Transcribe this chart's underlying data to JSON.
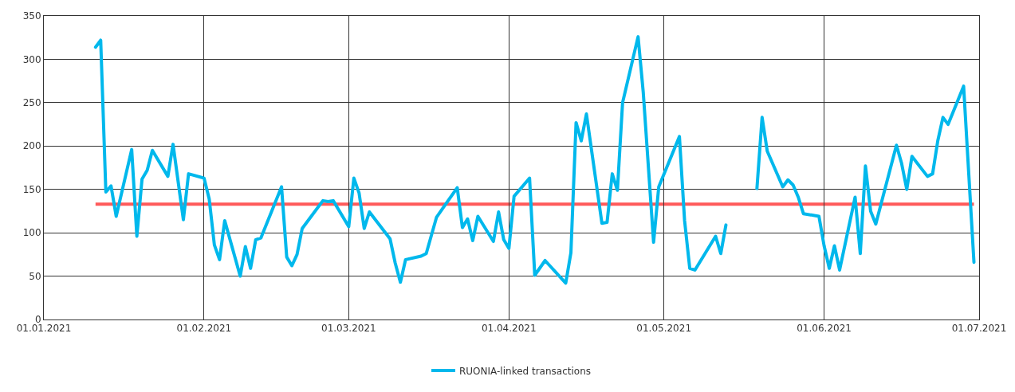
{
  "chart_data": {
    "type": "line",
    "x": [
      "2021-01-11",
      "2021-01-12",
      "2021-01-13",
      "2021-01-14",
      "2021-01-15",
      "2021-01-18",
      "2021-01-19",
      "2021-01-20",
      "2021-01-21",
      "2021-01-22",
      "2021-01-25",
      "2021-01-26",
      "2021-01-28",
      "2021-01-29",
      "2021-02-01",
      "2021-02-02",
      "2021-02-03",
      "2021-02-04",
      "2021-02-05",
      "2021-02-08",
      "2021-02-09",
      "2021-02-10",
      "2021-02-11",
      "2021-02-12",
      "2021-02-16",
      "2021-02-17",
      "2021-02-18",
      "2021-02-19",
      "2021-02-20",
      "2021-02-24",
      "2021-02-25",
      "2021-02-26",
      "2021-03-01",
      "2021-03-02",
      "2021-03-03",
      "2021-03-04",
      "2021-03-05",
      "2021-03-09",
      "2021-03-10",
      "2021-03-11",
      "2021-03-12",
      "2021-03-15",
      "2021-03-16",
      "2021-03-18",
      "2021-03-22",
      "2021-03-23",
      "2021-03-24",
      "2021-03-25",
      "2021-03-26",
      "2021-03-29",
      "2021-03-30",
      "2021-03-31",
      "2021-04-01",
      "2021-04-02",
      "2021-04-05",
      "2021-04-06",
      "2021-04-08",
      "2021-04-12",
      "2021-04-13",
      "2021-04-14",
      "2021-04-15",
      "2021-04-16",
      "2021-04-19",
      "2021-04-20",
      "2021-04-21",
      "2021-04-22",
      "2021-04-23",
      "2021-04-26",
      "2021-04-27",
      "2021-04-29",
      "2021-04-30",
      "2021-05-04",
      "2021-05-05",
      "2021-05-06",
      "2021-05-07",
      "2021-05-11",
      "2021-05-12",
      "2021-05-13",
      "2021-05-14",
      "2021-05-19",
      "2021-05-20",
      "2021-05-21",
      "2021-05-24",
      "2021-05-25",
      "2021-05-26",
      "2021-05-27",
      "2021-05-28",
      "2021-05-31",
      "2021-06-01",
      "2021-06-02",
      "2021-06-03",
      "2021-06-04",
      "2021-06-07",
      "2021-06-08",
      "2021-06-09",
      "2021-06-10",
      "2021-06-11",
      "2021-06-15",
      "2021-06-16",
      "2021-06-17",
      "2021-06-18",
      "2021-06-21",
      "2021-06-22",
      "2021-06-23",
      "2021-06-24",
      "2021-06-25",
      "2021-06-28",
      "2021-06-30"
    ],
    "series": [
      {
        "name": "RUONIA-linked transactions",
        "color": "#00b8ec",
        "values": [
          314,
          322,
          147,
          154,
          119,
          196,
          96,
          162,
          172,
          195,
          165,
          202,
          115,
          168,
          163,
          139,
          86,
          69,
          114,
          50,
          84,
          59,
          92,
          94,
          153,
          72,
          62,
          75,
          105,
          137,
          136,
          137,
          107,
          163,
          146,
          105,
          124,
          93,
          65,
          43,
          69,
          73,
          76,
          118,
          152,
          106,
          116,
          91,
          119,
          90,
          124,
          92,
          82,
          142,
          163,
          51,
          68,
          42,
          77,
          227,
          206,
          237,
          111,
          112,
          168,
          149,
          250,
          326,
          262,
          89,
          153,
          211,
          114,
          59,
          57,
          96,
          76,
          109,
          null,
          151,
          233,
          194,
          153,
          161,
          155,
          141,
          122,
          119,
          85,
          59,
          85,
          57,
          141,
          76,
          177,
          125,
          110,
          201,
          180,
          150,
          188,
          165,
          168,
          206,
          233,
          225,
          269,
          66
        ]
      }
    ],
    "ref_lines": [
      {
        "axis": "y",
        "value": 133,
        "color": "#ff5a5a"
      }
    ],
    "xlim": [
      "2021-01-01",
      "2021-07-01"
    ],
    "xticks": [
      {
        "value": "2021-01-01",
        "label": "01.01.2021"
      },
      {
        "value": "2021-02-01",
        "label": "01.02.2021"
      },
      {
        "value": "2021-03-01",
        "label": "01.03.2021"
      },
      {
        "value": "2021-04-01",
        "label": "01.04.2021"
      },
      {
        "value": "2021-05-01",
        "label": "01.05.2021"
      },
      {
        "value": "2021-06-01",
        "label": "01.06.2021"
      },
      {
        "value": "2021-07-01",
        "label": "01.07.2021"
      }
    ],
    "ylim": [
      0,
      350
    ],
    "yticks": [
      0,
      50,
      100,
      150,
      200,
      250,
      300,
      350
    ],
    "grid": true,
    "legend": "bottom"
  }
}
